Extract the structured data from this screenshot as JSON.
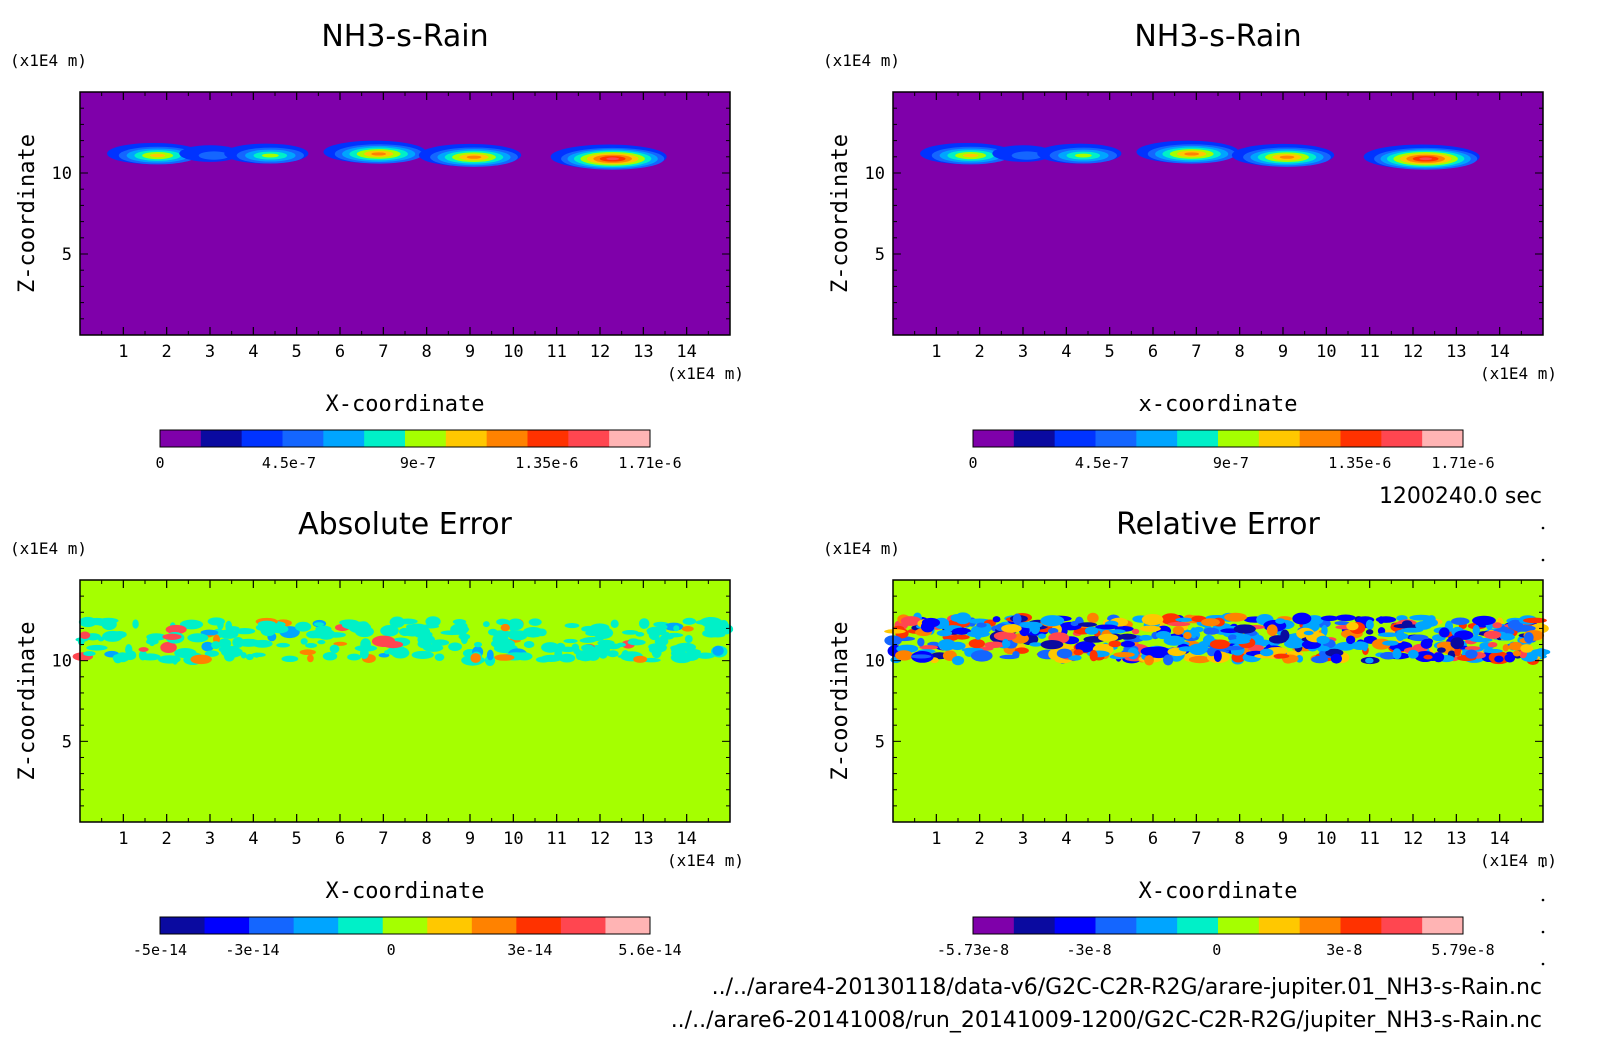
{
  "time_label": "1200240.0 sec",
  "files": [
    "../../arare4-20130118/data-v6/G2C-C2R-R2G/arare-jupiter.01_NH3-s-Rain.nc",
    "../../arare6-20141008/run_20141009-1200/G2C-C2R-R2G/jupiter_NH3-s-Rain.nc"
  ],
  "colors": {
    "field_bg": "#7f00aa",
    "error_bg": "#a5ff00",
    "field_scale": [
      "#7f00aa",
      "#0a0aa0",
      "#0033ff",
      "#1466ff",
      "#00a5ff",
      "#00f0c8",
      "#a5ff00",
      "#ffc800",
      "#ff8200",
      "#ff3200",
      "#ff4650",
      "#ffb4b4"
    ],
    "abs_scale": [
      "#0a0aa0",
      "#0000ff",
      "#1466ff",
      "#00a5ff",
      "#00f0c8",
      "#a5ff00",
      "#ffc800",
      "#ff8200",
      "#ff3200",
      "#ff4650",
      "#ffb4b4"
    ],
    "rel_scale": [
      "#7f00aa",
      "#0a0aa0",
      "#0000ff",
      "#1466ff",
      "#00a5ff",
      "#00f0c8",
      "#a5ff00",
      "#ffc800",
      "#ff8200",
      "#ff3200",
      "#ff4650",
      "#ffb4b4"
    ]
  },
  "chart_data": [
    {
      "type": "heatmap",
      "title": "NH3-s-Rain",
      "xlabel": "X-coordinate",
      "ylabel": "Z-coordinate",
      "x_unit": "(x1E4 m)",
      "y_unit": "(x1E4 m)",
      "xlim": [
        0,
        15
      ],
      "ylim": [
        0,
        15
      ],
      "x_ticks": [
        "1",
        "2",
        "3",
        "4",
        "5",
        "6",
        "7",
        "8",
        "9",
        "10",
        "11",
        "12",
        "13",
        "14"
      ],
      "y_ticks": [
        "5",
        "10"
      ],
      "colorbar_labels": [
        "0",
        "4.5e-7",
        "9e-7",
        "1.35e-6",
        "1.71e-6"
      ],
      "colorbar_range": [
        0,
        1.71e-06
      ],
      "features": [
        {
          "x": 1.7,
          "z": 11.2,
          "peak": 1e-06
        },
        {
          "x": 3.0,
          "z": 11.2,
          "peak": 3e-07
        },
        {
          "x": 4.3,
          "z": 11.2,
          "peak": 8e-07
        },
        {
          "x": 6.8,
          "z": 11.3,
          "peak": 1.2e-06
        },
        {
          "x": 9.0,
          "z": 11.1,
          "peak": 1.2e-06
        },
        {
          "x": 12.2,
          "z": 11.0,
          "peak": 1.5e-06
        }
      ]
    },
    {
      "type": "heatmap",
      "title": "NH3-s-Rain",
      "xlabel": "x-coordinate",
      "ylabel": "Z-coordinate",
      "x_unit": "(x1E4 m)",
      "y_unit": "(x1E4 m)",
      "xlim": [
        0,
        15
      ],
      "ylim": [
        0,
        15
      ],
      "x_ticks": [
        "1",
        "2",
        "3",
        "4",
        "5",
        "6",
        "7",
        "8",
        "9",
        "10",
        "11",
        "12",
        "13",
        "14"
      ],
      "y_ticks": [
        "5",
        "10"
      ],
      "colorbar_labels": [
        "0",
        "4.5e-7",
        "9e-7",
        "1.35e-6",
        "1.71e-6"
      ],
      "colorbar_range": [
        0,
        1.71e-06
      ],
      "features": [
        {
          "x": 1.7,
          "z": 11.2,
          "peak": 1e-06
        },
        {
          "x": 3.0,
          "z": 11.2,
          "peak": 3e-07
        },
        {
          "x": 4.3,
          "z": 11.2,
          "peak": 8e-07
        },
        {
          "x": 6.8,
          "z": 11.3,
          "peak": 1.2e-06
        },
        {
          "x": 9.0,
          "z": 11.1,
          "peak": 1.2e-06
        },
        {
          "x": 12.2,
          "z": 11.0,
          "peak": 1.5e-06
        }
      ]
    },
    {
      "type": "heatmap",
      "title": "Absolute Error",
      "xlabel": "X-coordinate",
      "ylabel": "Z-coordinate",
      "x_unit": "(x1E4 m)",
      "y_unit": "(x1E4 m)",
      "xlim": [
        0,
        15
      ],
      "ylim": [
        0,
        15
      ],
      "x_ticks": [
        "1",
        "2",
        "3",
        "4",
        "5",
        "6",
        "7",
        "8",
        "9",
        "10",
        "11",
        "12",
        "13",
        "14"
      ],
      "y_ticks": [
        "5",
        "10"
      ],
      "colorbar_labels": [
        "-5e-14",
        "-3e-14",
        "0",
        "3e-14",
        "5.6e-14"
      ],
      "colorbar_range": [
        -5e-14,
        5.6e-14
      ],
      "noise_band_z": [
        10.0,
        12.5
      ]
    },
    {
      "type": "heatmap",
      "title": "Relative Error",
      "xlabel": "X-coordinate",
      "ylabel": "Z-coordinate",
      "x_unit": "(x1E4 m)",
      "y_unit": "(x1E4 m)",
      "xlim": [
        0,
        15
      ],
      "ylim": [
        0,
        15
      ],
      "x_ticks": [
        "1",
        "2",
        "3",
        "4",
        "5",
        "6",
        "7",
        "8",
        "9",
        "10",
        "11",
        "12",
        "13",
        "14"
      ],
      "y_ticks": [
        "5",
        "10"
      ],
      "colorbar_labels": [
        "-5.73e-8",
        "-3e-8",
        "0",
        "3e-8",
        "5.79e-8"
      ],
      "colorbar_range": [
        -5.73e-08,
        5.79e-08
      ],
      "noise_band_z": [
        10.0,
        12.7
      ]
    }
  ]
}
